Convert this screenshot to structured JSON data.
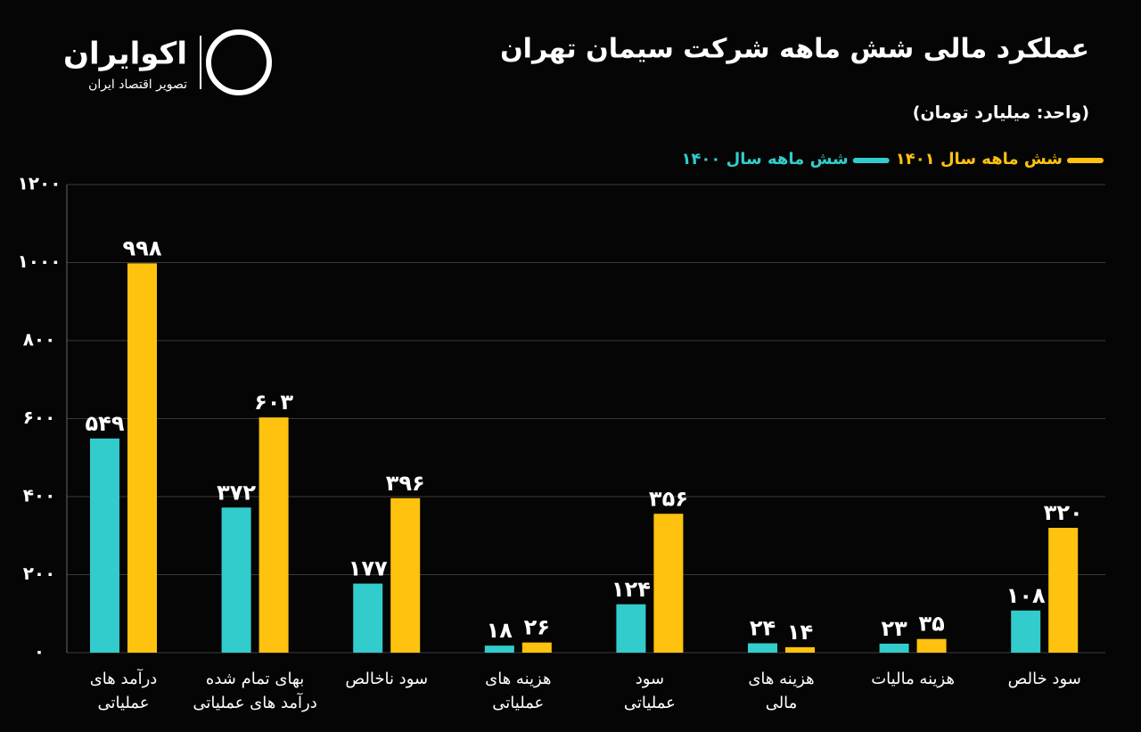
{
  "brand": {
    "name": "اکوایران",
    "tagline": "تصویر اقتصاد ایران"
  },
  "chart_data": {
    "type": "bar",
    "title": "عملکرد مالی شش ماهه شرکت سیمان تهران",
    "subtitle": "(واحد: میلیارد تومان)",
    "categories": [
      [
        "درآمد های",
        "عملیاتی"
      ],
      [
        "بهای تمام شده",
        "درآمد های عملیاتی"
      ],
      [
        "سود ناخالص"
      ],
      [
        "هزینه های",
        "عملیاتی"
      ],
      [
        "سود",
        "عملیاتی"
      ],
      [
        "هزینه های",
        "مالی"
      ],
      [
        "هزینه مالیات"
      ],
      [
        "سود خالص"
      ]
    ],
    "series": [
      {
        "name": "شش ماهه سال ۱۴۰۰",
        "color": "#33cccc",
        "values": [
          549,
          372,
          177,
          18,
          124,
          24,
          23,
          108
        ],
        "value_labels": [
          "۵۴۹",
          "۳۷۲",
          "۱۷۷",
          "۱۸",
          "۱۲۴",
          "۲۴",
          "۲۳",
          "۱۰۸"
        ]
      },
      {
        "name": "شش ماهه سال ۱۴۰۱",
        "color": "#ffc20e",
        "values": [
          998,
          603,
          396,
          26,
          356,
          14,
          35,
          320
        ],
        "value_labels": [
          "۹۹۸",
          "۶۰۳",
          "۳۹۶",
          "۲۶",
          "۳۵۶",
          "۱۴",
          "۳۵",
          "۳۲۰"
        ]
      }
    ],
    "ylim": [
      0,
      1200
    ],
    "yticks": [
      {
        "value": 0,
        "label": "۰"
      },
      {
        "value": 200,
        "label": "۲۰۰"
      },
      {
        "value": 400,
        "label": "۴۰۰"
      },
      {
        "value": 600,
        "label": "۶۰۰"
      },
      {
        "value": 800,
        "label": "۸۰۰"
      },
      {
        "value": 1000,
        "label": "۱۰۰۰"
      },
      {
        "value": 1200,
        "label": "۱۲۰۰"
      }
    ],
    "grid": true
  }
}
